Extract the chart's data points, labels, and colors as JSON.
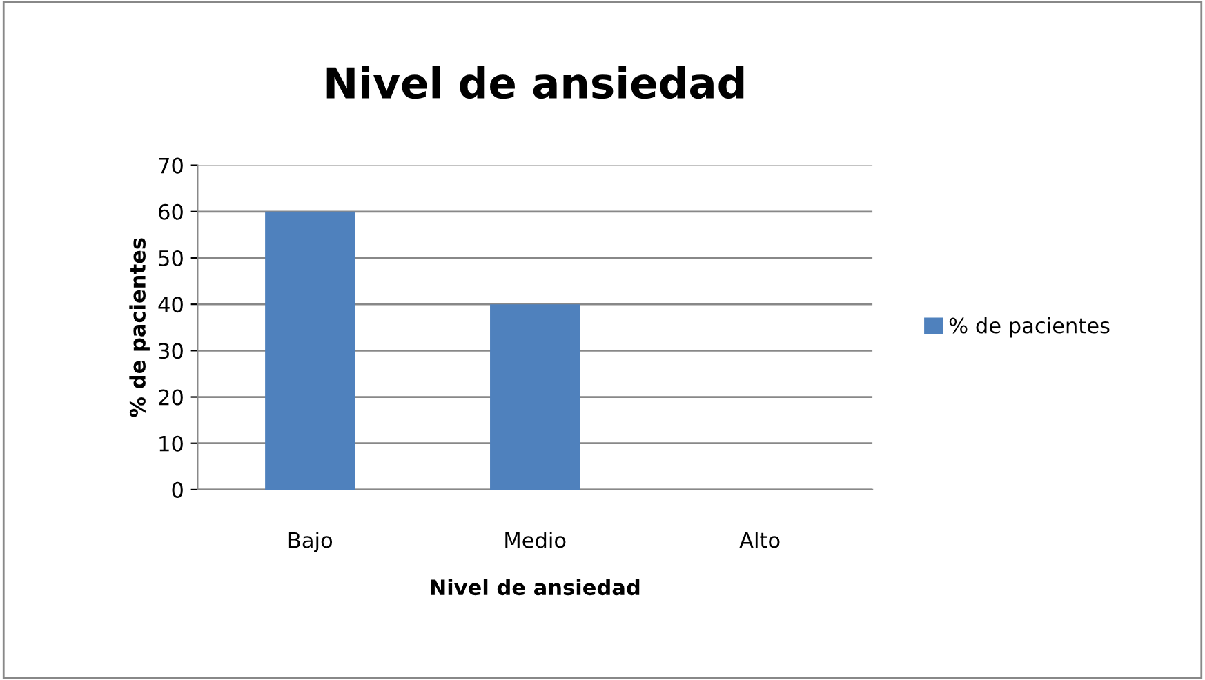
{
  "chart_data": {
    "type": "bar",
    "title": "Nivel de ansiedad",
    "xlabel": "Nivel de ansiedad",
    "ylabel": "% de pacientes",
    "categories": [
      "Bajo",
      "Medio",
      "Alto"
    ],
    "series": [
      {
        "name": "% de pacientes",
        "color": "#4f81bd",
        "values": [
          60,
          40,
          0
        ]
      }
    ],
    "ylim": [
      0,
      70
    ],
    "yticks": [
      0,
      10,
      20,
      30,
      40,
      50,
      60,
      70
    ],
    "grid": "y",
    "legend": "right"
  }
}
